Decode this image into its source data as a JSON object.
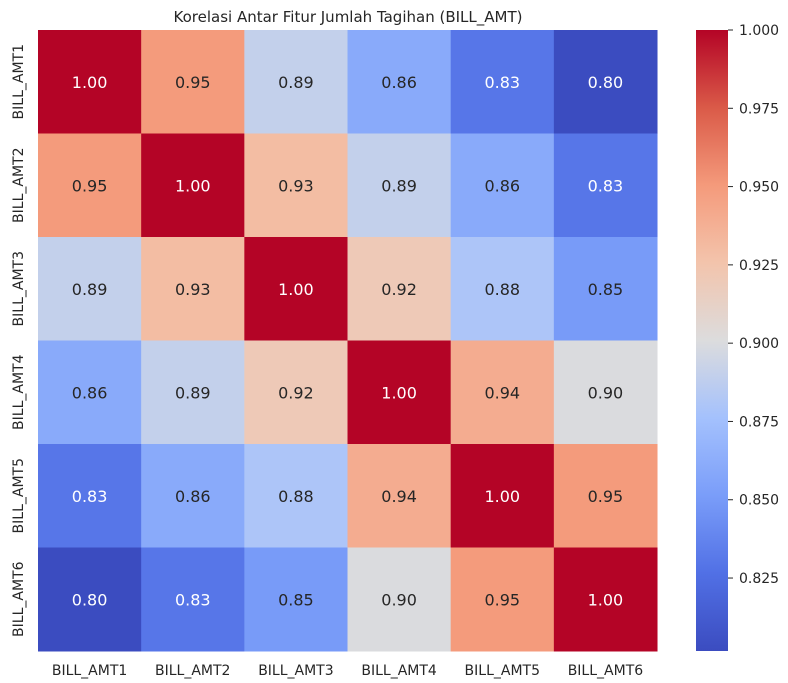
{
  "chart_data": {
    "type": "heatmap",
    "title": "Korelasi Antar Fitur Jumlah Tagihan (BILL_AMT)",
    "xlabel": "",
    "ylabel": "",
    "x_categories": [
      "BILL_AMT1",
      "BILL_AMT2",
      "BILL_AMT3",
      "BILL_AMT4",
      "BILL_AMT5",
      "BILL_AMT6"
    ],
    "y_categories": [
      "BILL_AMT1",
      "BILL_AMT2",
      "BILL_AMT3",
      "BILL_AMT4",
      "BILL_AMT5",
      "BILL_AMT6"
    ],
    "values": [
      [
        1.0,
        0.95,
        0.89,
        0.86,
        0.83,
        0.8
      ],
      [
        0.95,
        1.0,
        0.93,
        0.89,
        0.86,
        0.83
      ],
      [
        0.89,
        0.93,
        1.0,
        0.92,
        0.88,
        0.85
      ],
      [
        0.86,
        0.89,
        0.92,
        1.0,
        0.94,
        0.9
      ],
      [
        0.83,
        0.86,
        0.88,
        0.94,
        1.0,
        0.95
      ],
      [
        0.8,
        0.83,
        0.85,
        0.9,
        0.95,
        1.0
      ]
    ],
    "labels": [
      [
        "1.00",
        "0.95",
        "0.89",
        "0.86",
        "0.83",
        "0.80"
      ],
      [
        "0.95",
        "1.00",
        "0.93",
        "0.89",
        "0.86",
        "0.83"
      ],
      [
        "0.89",
        "0.93",
        "1.00",
        "0.92",
        "0.88",
        "0.85"
      ],
      [
        "0.86",
        "0.89",
        "0.92",
        "1.00",
        "0.94",
        "0.90"
      ],
      [
        "0.83",
        "0.86",
        "0.88",
        "0.94",
        "1.00",
        "0.95"
      ],
      [
        "0.80",
        "0.83",
        "0.85",
        "0.90",
        "0.95",
        "1.00"
      ]
    ],
    "colormap": "coolwarm",
    "colorbar": {
      "vmin": 0.8017,
      "vmax": 1.0,
      "ticks": [
        0.825,
        0.85,
        0.875,
        0.9,
        0.925,
        0.95,
        0.975,
        1.0
      ],
      "tick_labels": [
        "0.825",
        "0.850",
        "0.875",
        "0.900",
        "0.925",
        "0.950",
        "0.975",
        "1.000"
      ]
    },
    "colorbar_placement": "right",
    "grid": false
  }
}
